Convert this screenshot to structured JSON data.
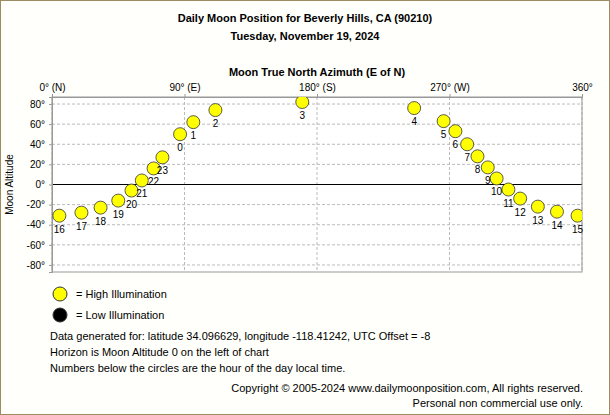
{
  "chart_data": {
    "type": "scatter",
    "title": "Daily Moon Position for Beverly Hills, CA (90210)",
    "subtitle": "Tuesday, November 19, 2024",
    "x_label": "Moon True North Azimuth (E of N)",
    "y_label": "Moon Altitude",
    "x": [
      87,
      96,
      111,
      170,
      246,
      266,
      274,
      282,
      289,
      296,
      302,
      310,
      318,
      330,
      343,
      357,
      5,
      20,
      33,
      45,
      54,
      61,
      69,
      75
    ],
    "series": [
      {
        "name": "High Illumination",
        "color": "#ffff00",
        "marker": "circle",
        "values": [
          50,
          62,
          74,
          82,
          76,
          63,
          53,
          40,
          28,
          17,
          6,
          -5,
          -14,
          -22,
          -27,
          -31,
          -31,
          -28,
          -23,
          -16,
          -6,
          4,
          16,
          27
        ],
        "hours": [
          0,
          1,
          2,
          3,
          4,
          5,
          6,
          7,
          8,
          9,
          10,
          11,
          12,
          13,
          14,
          15,
          16,
          17,
          18,
          19,
          20,
          21,
          22,
          23
        ]
      },
      {
        "name": "Low Illumination",
        "color": "#000000",
        "marker": "circle",
        "values": [
          null,
          null,
          null,
          null,
          null,
          null,
          null,
          null,
          null,
          null,
          null,
          null,
          null,
          null,
          null,
          null,
          null,
          null,
          null,
          null,
          null,
          null,
          null,
          null
        ]
      }
    ],
    "xlim": [
      0,
      360
    ],
    "xticks": [
      {
        "value": 0,
        "label": "0° (N)"
      },
      {
        "value": 90,
        "label": "90° (E)"
      },
      {
        "value": 180,
        "label": "180° (S)"
      },
      {
        "value": 270,
        "label": "270° (W)"
      },
      {
        "value": 360,
        "label": "360°"
      }
    ],
    "ylim": [
      -87,
      87
    ],
    "yticks": [
      {
        "value": 80,
        "label": "80°"
      },
      {
        "value": 60,
        "label": "60°"
      },
      {
        "value": 40,
        "label": "40°"
      },
      {
        "value": 20,
        "label": "20°"
      },
      {
        "value": 0,
        "label": "0°"
      },
      {
        "value": -20,
        "label": "-20°"
      },
      {
        "value": -40,
        "label": "-40°"
      },
      {
        "value": -60,
        "label": "-60°"
      },
      {
        "value": -80,
        "label": "-80°"
      }
    ],
    "grid": true,
    "legend": "bottom-left",
    "notes": [
      "Data generated for: latitude 34.096629, longitude -118.41242, UTC Offset = -8",
      "Horizon is Moon Altitude 0 on the left of chart",
      "Numbers below the circles are the hour of the day local time."
    ],
    "copyright": [
      "Copyright © 2005-2024 www.dailymoonposition.com, All rights reserved.",
      "Personal non commercial use only."
    ]
  }
}
